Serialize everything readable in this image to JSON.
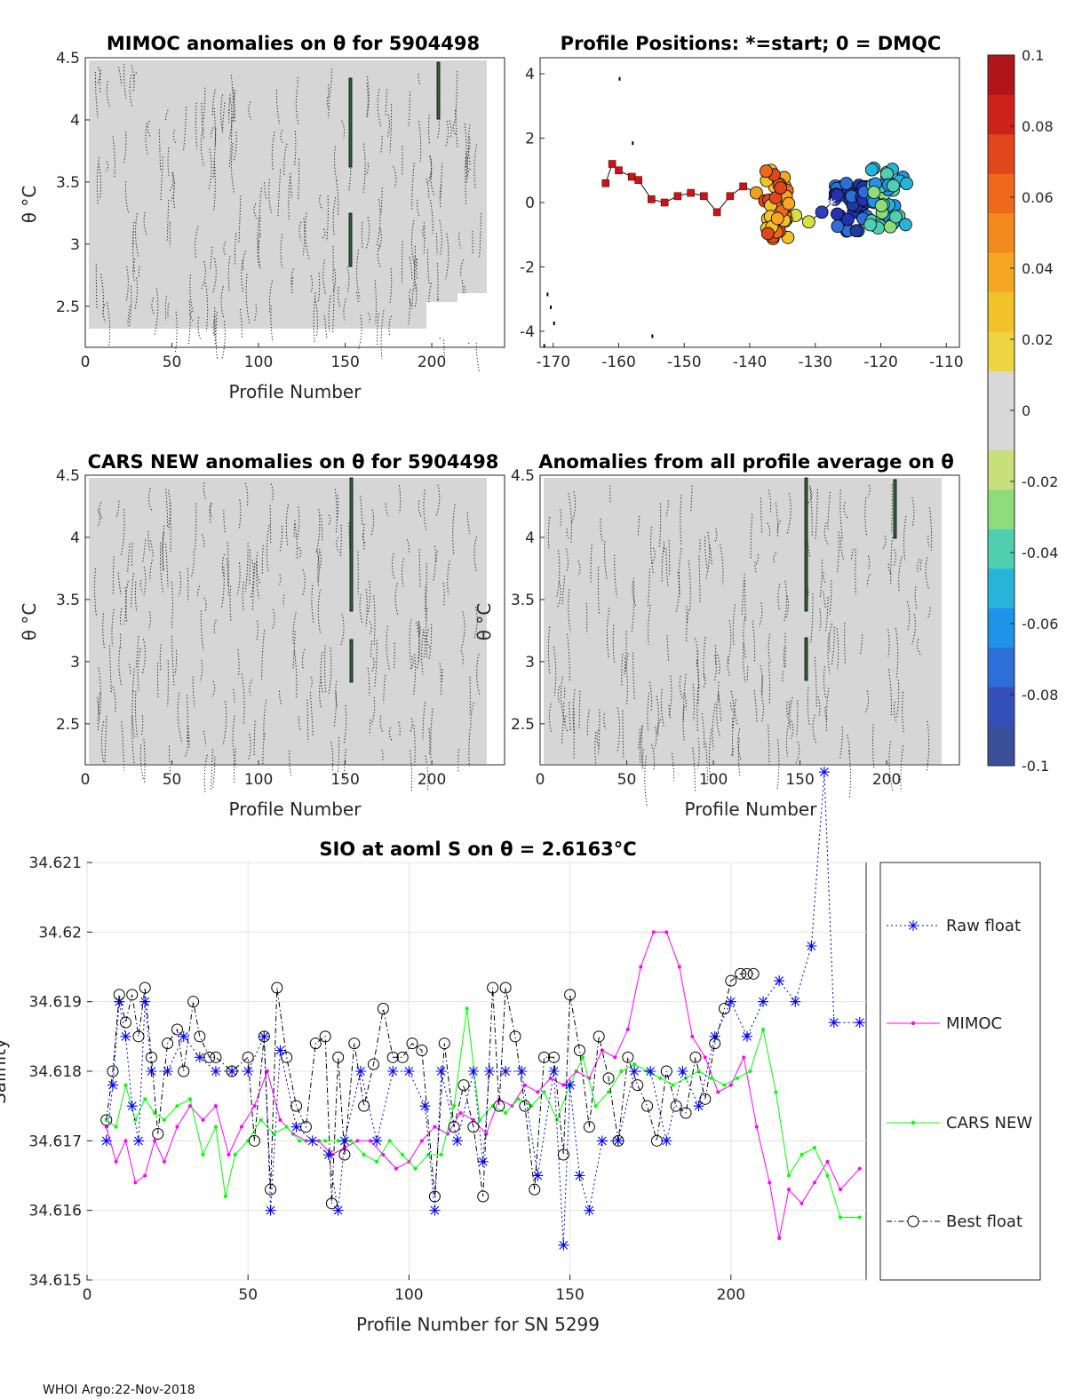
{
  "footer": "WHOI Argo:22-Nov-2018",
  "colorbar": {
    "ticks": [
      "0.1",
      "0.08",
      "0.06",
      "0.04",
      "0.02",
      "0",
      "-0.02",
      "-0.04",
      "-0.06",
      "-0.08",
      "-0.1"
    ],
    "colors": [
      "#3a4f9a",
      "#3450b8",
      "#2d6fd8",
      "#1f93e8",
      "#26b5d8",
      "#4fcfb0",
      "#8fdc7c",
      "#c8e07a",
      "#d8d8d8",
      "#d8d8d8",
      "#ecd540",
      "#f2c22a",
      "#f5a623",
      "#f38a1e",
      "#ee6a1a",
      "#e0471a",
      "#cc2218",
      "#b0151a"
    ]
  },
  "chart_data": [
    {
      "type": "heatmap",
      "title": "MIMOC anomalies on θ  for 5904498",
      "xlabel": "Profile Number",
      "ylabel": "θ °C",
      "xlim": [
        0,
        242
      ],
      "ylim": [
        2.17,
        4.5
      ],
      "xticks": [
        "0",
        "50",
        "100",
        "150",
        "200"
      ],
      "yticks": [
        "2.5",
        "3",
        "3.5",
        "4",
        "4.5"
      ],
      "gaps": [
        {
          "x": [
            190,
            216
          ],
          "y": [
            2.17,
            2.43
          ]
        },
        {
          "x": [
            223,
            242
          ],
          "y": [
            2.17,
            2.52
          ]
        }
      ]
    },
    {
      "type": "scatter",
      "title": "Profile Positions: *=start; 0 = DMQC",
      "xlim": [
        -172,
        -108
      ],
      "ylim": [
        -4.5,
        4.5
      ],
      "xticks": [
        "-170",
        "-160",
        "-150",
        "-140",
        "-130",
        "-120",
        "-110"
      ],
      "yticks": [
        "-4",
        "-2",
        "0",
        "2",
        "4"
      ],
      "track": [
        [
          -162,
          0.6
        ],
        [
          -161,
          1.2
        ],
        [
          -160,
          1.0
        ],
        [
          -158,
          0.8
        ],
        [
          -157,
          0.7
        ],
        [
          -155,
          0.1
        ],
        [
          -153,
          0.0
        ],
        [
          -151,
          0.2
        ],
        [
          -149,
          0.3
        ],
        [
          -147,
          0.2
        ],
        [
          -145,
          -0.3
        ],
        [
          -143,
          0.2
        ],
        [
          -141,
          0.5
        ],
        [
          -139,
          0.3
        ],
        [
          -137,
          0.0
        ],
        [
          -135,
          -0.2
        ],
        [
          -133,
          -0.4
        ],
        [
          -131,
          -0.6
        ],
        [
          -129,
          -0.3
        ],
        [
          -127,
          0.1
        ],
        [
          -124,
          0.2
        ],
        [
          -121,
          0.0
        ],
        [
          -118,
          -0.2
        ]
      ]
    },
    {
      "type": "heatmap",
      "title": "CARS NEW anomalies on θ for 5904498",
      "xlabel": "Profile Number",
      "ylabel": "θ °C",
      "xlim": [
        0,
        242
      ],
      "ylim": [
        2.17,
        4.5
      ],
      "xticks": [
        "0",
        "50",
        "100",
        "150",
        "200"
      ],
      "yticks": [
        "2.5",
        "3",
        "3.5",
        "4",
        "4.5"
      ]
    },
    {
      "type": "heatmap",
      "title": "Anomalies from all profile average on θ",
      "xlabel": "Profile Number",
      "ylabel": "θ °C",
      "xlim": [
        0,
        242
      ],
      "ylim": [
        2.17,
        4.5
      ],
      "xticks": [
        "0",
        "50",
        "100",
        "150",
        "200"
      ],
      "yticks": [
        "2.5",
        "3",
        "3.5",
        "4",
        "4.5"
      ]
    },
    {
      "type": "line",
      "title": "SIO at aoml S on θ = 2.6163°C",
      "xlabel": "Profile Number for SN 5299",
      "ylabel": "Salinity",
      "xlim": [
        0,
        242
      ],
      "ylim": [
        34.615,
        34.621
      ],
      "xticks": [
        "0",
        "50",
        "100",
        "150",
        "200"
      ],
      "yticks": [
        "34.615",
        "34.616",
        "34.617",
        "34.618",
        "34.619",
        "34.62",
        "34.621"
      ],
      "legend": "right",
      "series": [
        {
          "name": "Raw float",
          "color": "#0000ff",
          "x": [
            6,
            8,
            10,
            12,
            14,
            16,
            18,
            20,
            25,
            30,
            35,
            40,
            45,
            50,
            55,
            57,
            60,
            65,
            70,
            75,
            78,
            80,
            85,
            90,
            95,
            100,
            105,
            108,
            110,
            115,
            120,
            123,
            125,
            130,
            135,
            140,
            145,
            148,
            150,
            153,
            156,
            160,
            165,
            170,
            175,
            180,
            185,
            190,
            195,
            200,
            205,
            210,
            215,
            220,
            225,
            229,
            232,
            240
          ],
          "y": [
            34.617,
            34.6178,
            34.619,
            34.6185,
            34.6175,
            34.617,
            34.619,
            34.618,
            34.618,
            34.6185,
            34.6182,
            34.618,
            34.618,
            34.618,
            34.6185,
            34.616,
            34.6183,
            34.6172,
            34.617,
            34.6168,
            34.616,
            34.617,
            34.618,
            34.617,
            34.618,
            34.618,
            34.6175,
            34.616,
            34.618,
            34.617,
            34.618,
            34.6167,
            34.618,
            34.618,
            34.618,
            34.6165,
            34.618,
            34.6155,
            34.6178,
            34.6165,
            34.616,
            34.617,
            34.617,
            34.618,
            34.618,
            34.617,
            34.618,
            34.6175,
            34.6185,
            34.619,
            34.6185,
            34.619,
            34.6193,
            34.619,
            34.6198,
            34.6223,
            34.6187,
            34.6187
          ]
        },
        {
          "name": "MIMOC",
          "color": "#ff00ff",
          "x": [
            6,
            9,
            12,
            15,
            18,
            21,
            24,
            28,
            32,
            36,
            40,
            44,
            48,
            52,
            56,
            60,
            64,
            68,
            72,
            76,
            80,
            84,
            88,
            92,
            96,
            100,
            104,
            108,
            112,
            116,
            120,
            124,
            128,
            132,
            136,
            140,
            144,
            148,
            152,
            156,
            160,
            164,
            168,
            172,
            176,
            180,
            184,
            188,
            192,
            196,
            200,
            204,
            208,
            212,
            215,
            218,
            222,
            226,
            230,
            234,
            240
          ],
          "y": [
            34.6172,
            34.6167,
            34.617,
            34.6164,
            34.6165,
            34.617,
            34.6167,
            34.6172,
            34.6175,
            34.6173,
            34.6175,
            34.6168,
            34.6172,
            34.6175,
            34.618,
            34.6173,
            34.6171,
            34.617,
            34.617,
            34.6168,
            34.6169,
            34.617,
            34.617,
            34.6168,
            34.6166,
            34.6167,
            34.617,
            34.6172,
            34.6171,
            34.6174,
            34.6173,
            34.6171,
            34.6176,
            34.6175,
            34.6178,
            34.6177,
            34.6179,
            34.6178,
            34.618,
            34.6179,
            34.6183,
            34.6182,
            34.6186,
            34.6195,
            34.62,
            34.62,
            34.6195,
            34.6185,
            34.6182,
            34.6177,
            34.6178,
            34.6182,
            34.6172,
            34.6164,
            34.6156,
            34.6163,
            34.6161,
            34.6164,
            34.6167,
            34.6163,
            34.6166
          ]
        },
        {
          "name": "CARS NEW",
          "color": "#00ff00",
          "x": [
            6,
            9,
            12,
            15,
            18,
            21,
            24,
            28,
            32,
            36,
            40,
            43,
            46,
            50,
            54,
            58,
            62,
            66,
            70,
            74,
            78,
            82,
            86,
            90,
            94,
            98,
            102,
            106,
            110,
            114,
            118,
            122,
            126,
            130,
            134,
            138,
            142,
            146,
            150,
            154,
            158,
            162,
            166,
            170,
            174,
            178,
            182,
            186,
            190,
            194,
            198,
            202,
            206,
            210,
            214,
            218,
            222,
            226,
            230,
            234,
            240
          ],
          "y": [
            34.6173,
            34.6172,
            34.6178,
            34.6173,
            34.6176,
            34.6174,
            34.6173,
            34.6175,
            34.6176,
            34.6168,
            34.6172,
            34.6162,
            34.6168,
            34.617,
            34.6173,
            34.6171,
            34.6172,
            34.617,
            34.617,
            34.617,
            34.617,
            34.617,
            34.6168,
            34.6167,
            34.617,
            34.6168,
            34.6166,
            34.6168,
            34.6168,
            34.6175,
            34.6189,
            34.6173,
            34.6175,
            34.6174,
            34.6176,
            34.6175,
            34.6177,
            34.6173,
            34.6178,
            34.6182,
            34.6175,
            34.6177,
            34.618,
            34.6181,
            34.618,
            34.6179,
            34.6178,
            34.6179,
            34.618,
            34.6179,
            34.6178,
            34.6179,
            34.618,
            34.6186,
            34.6177,
            34.6165,
            34.6168,
            34.6169,
            34.6165,
            34.6159,
            34.6159
          ]
        },
        {
          "name": "Best float",
          "color": "#000000",
          "x": [
            6,
            8,
            10,
            12,
            14,
            16,
            18,
            20,
            22,
            25,
            28,
            30,
            33,
            35,
            38,
            40,
            45,
            50,
            52,
            55,
            57,
            59,
            62,
            65,
            68,
            71,
            74,
            76,
            78,
            80,
            83,
            86,
            89,
            92,
            95,
            98,
            101,
            104,
            108,
            111,
            114,
            117,
            120,
            123,
            126,
            128,
            130,
            133,
            136,
            139,
            142,
            145,
            148,
            150,
            153,
            156,
            159,
            162,
            165,
            168,
            171,
            174,
            177,
            180,
            183,
            186,
            189,
            192,
            195,
            198,
            200,
            203,
            205,
            207
          ],
          "y": [
            34.6173,
            34.618,
            34.6191,
            34.6187,
            34.6191,
            34.6185,
            34.6192,
            34.6182,
            34.6171,
            34.6184,
            34.6186,
            34.618,
            34.619,
            34.6185,
            34.6182,
            34.6182,
            34.618,
            34.6182,
            34.617,
            34.6185,
            34.6163,
            34.6192,
            34.6182,
            34.6175,
            34.6172,
            34.6184,
            34.6185,
            34.6161,
            34.6182,
            34.6168,
            34.6184,
            34.6175,
            34.6181,
            34.6189,
            34.6182,
            34.6182,
            34.6184,
            34.6183,
            34.6162,
            34.6184,
            34.6172,
            34.6178,
            34.6172,
            34.6162,
            34.6192,
            34.6175,
            34.6192,
            34.6185,
            34.6175,
            34.6163,
            34.6182,
            34.6182,
            34.6168,
            34.6191,
            34.6183,
            34.6172,
            34.6185,
            34.6179,
            34.617,
            34.6182,
            34.6178,
            34.6175,
            34.617,
            34.618,
            34.6175,
            34.6174,
            34.6182,
            34.6176,
            34.6184,
            34.6189,
            34.6193,
            34.6194,
            34.6194,
            34.6194
          ]
        }
      ]
    }
  ]
}
